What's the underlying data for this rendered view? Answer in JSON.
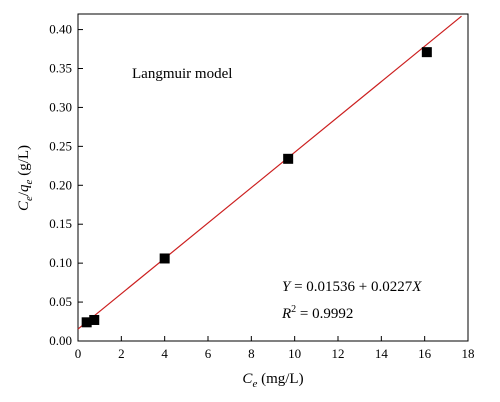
{
  "chart_data": {
    "type": "scatter",
    "title": "",
    "annotation_model": "Langmuir model",
    "xlabel": {
      "main": "C",
      "sub": "e",
      "rest": " (mg/L)"
    },
    "ylabel": {
      "c": "C",
      "c_sub": "e",
      "slash": "/",
      "q": "q",
      "q_sub": "e",
      "rest": " (g/L)"
    },
    "xlim": [
      0,
      18
    ],
    "ylim": [
      0,
      0.42
    ],
    "xticks": [
      0,
      2,
      4,
      6,
      8,
      10,
      12,
      14,
      16,
      18
    ],
    "xtick_labels": [
      "0",
      "2",
      "4",
      "6",
      "8",
      "10",
      "12",
      "14",
      "16",
      "18"
    ],
    "yticks": [
      0,
      0.05,
      0.1,
      0.15,
      0.2,
      0.25,
      0.3,
      0.35,
      0.4
    ],
    "ytick_labels": [
      "0.00",
      "0.05",
      "0.10",
      "0.15",
      "0.20",
      "0.25",
      "0.30",
      "0.35",
      "0.40"
    ],
    "grid": false,
    "series": [
      {
        "marker": "square",
        "color": "#000000",
        "points": [
          {
            "x": 0.4,
            "y": 0.024
          },
          {
            "x": 0.75,
            "y": 0.027
          },
          {
            "x": 4.0,
            "y": 0.106
          },
          {
            "x": 9.7,
            "y": 0.234
          },
          {
            "x": 16.1,
            "y": 0.371
          }
        ]
      }
    ],
    "fit_line": {
      "intercept": 0.01536,
      "slope": 0.0227,
      "x_range": [
        0,
        17.7
      ],
      "color": "#cc1f1f"
    },
    "equation": {
      "lhs": "Y",
      "rhs": " = 0.01536 + 0.0227",
      "var": "X"
    },
    "r2": {
      "label": "R",
      "exp": "2",
      "value": " = 0.9992"
    }
  }
}
